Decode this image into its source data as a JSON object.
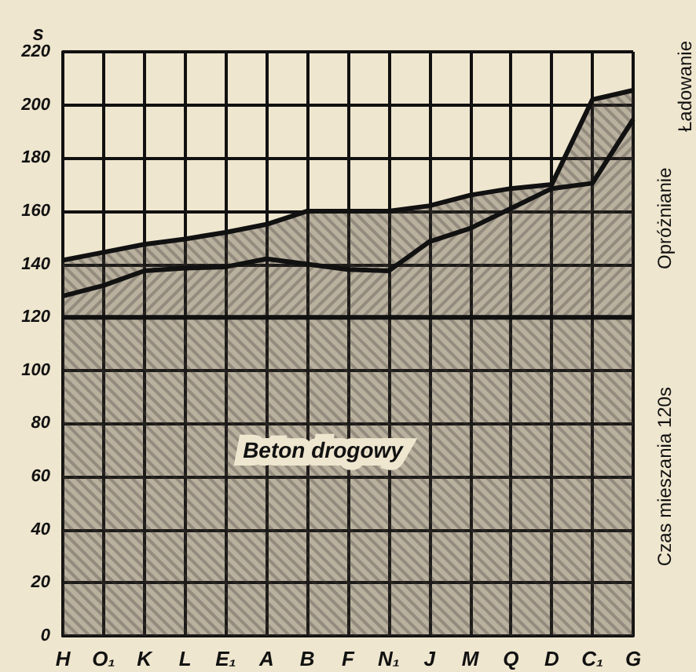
{
  "chart_data": {
    "type": "area",
    "stacked": true,
    "ylabel": "s",
    "categories": [
      "H",
      "O₁",
      "K",
      "L",
      "E₁",
      "A",
      "B",
      "F",
      "N₁",
      "J",
      "M",
      "Q",
      "D",
      "C₁",
      "G"
    ],
    "series": [
      {
        "name": "Czas mieszania 120s",
        "color": "#3a3530",
        "values": [
          120,
          120,
          120,
          120,
          120,
          120,
          120,
          120,
          120,
          120,
          120,
          120,
          120,
          120,
          120
        ]
      },
      {
        "name": "Opróżnianie",
        "color": "#3a3530",
        "values": [
          8,
          12,
          17.5,
          18.5,
          19,
          22,
          20,
          18,
          17.5,
          28.5,
          33.5,
          41,
          48.5,
          50.5,
          74.5
        ]
      },
      {
        "name": "Ładowanie",
        "color": "#3a3530",
        "values": [
          13.5,
          12.5,
          10,
          11,
          13,
          13,
          20,
          22,
          22.5,
          13.5,
          12.5,
          7.5,
          1.5,
          31.5,
          11
        ]
      }
    ],
    "ylim": [
      0,
      220
    ],
    "yticks": [
      0,
      20,
      40,
      60,
      80,
      100,
      120,
      140,
      160,
      180,
      200,
      220
    ],
    "grid": true,
    "legend": false,
    "marker": "none",
    "line_style": "solid",
    "annotations": [
      "Beton drogowy"
    ]
  }
}
